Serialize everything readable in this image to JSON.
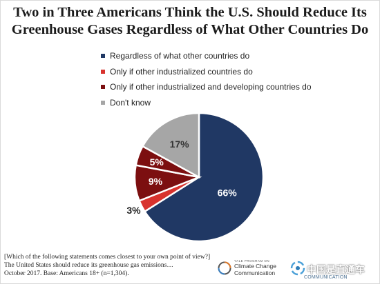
{
  "chart_data": {
    "type": "pie",
    "title": "Two in Three Americans Think the U.S. Should Reduce Its Greenhouse Gases Regardless of What Other Countries Do",
    "title_lines": [
      "Two in Three Americans Think the U.S. Should Reduce Its",
      "Greenhouse Gases Regardless of What Other Countries Do"
    ],
    "legend_position": "top",
    "slices": [
      {
        "label": "Regardless of what other countries do",
        "value": 66,
        "display": "66%",
        "color": "#203864"
      },
      {
        "label": "Only if other industrialized countries do",
        "value": 3,
        "display": "3%",
        "color": "#d8322d"
      },
      {
        "label": "Only if other industrialized and developing countries do",
        "value": 9,
        "display": "9%",
        "color": "#7c0f10"
      },
      {
        "label": "",
        "value": 5,
        "display": "5%",
        "color": "#7c0f10"
      },
      {
        "label": "Don't know",
        "value": 17,
        "display": "17%",
        "color": "#a6a6a6"
      }
    ]
  },
  "footnote": {
    "lines": [
      "[Which of the following statements comes closest to your own point of view?]",
      "The United States should reduce its greenhouse gas emissions…",
      "October 2017. Base: Americans 18+ (n=1,304)."
    ]
  },
  "logos": {
    "ycc": {
      "small_text": "YALE PROGRAM ON",
      "line1": "Climate Change",
      "line2": "Communication"
    },
    "watermark": {
      "main": "中国是直通车",
      "sub": "COMMUNICATION"
    }
  }
}
